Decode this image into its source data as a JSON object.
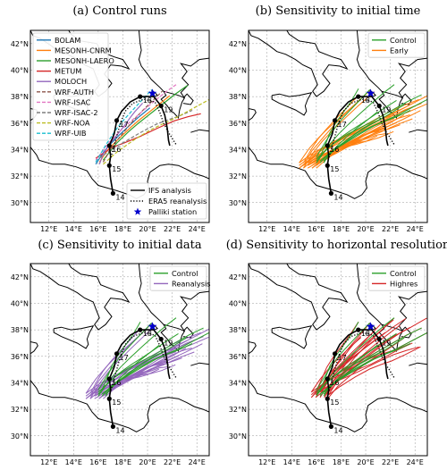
{
  "figure": {
    "axes": {
      "x_ticks": [
        "12°E",
        "14°E",
        "16°E",
        "18°E",
        "20°E",
        "22°E",
        "24°E"
      ],
      "y_ticks": [
        "42°N",
        "40°N",
        "38°N",
        "36°N",
        "34°N",
        "32°N",
        "30°N"
      ]
    },
    "panels": [
      {
        "title": "(a) Control runs",
        "legend": [
          {
            "label": "BOLAM",
            "color": "#1f77b4",
            "style": "solid"
          },
          {
            "label": "MESONH-CNRM",
            "color": "#ff7f0e",
            "style": "solid"
          },
          {
            "label": "MESONH-LAERO",
            "color": "#2ca02c",
            "style": "solid"
          },
          {
            "label": "METUM",
            "color": "#d62728",
            "style": "solid"
          },
          {
            "label": "MOLOCH",
            "color": "#9467bd",
            "style": "solid"
          },
          {
            "label": "WRF-AUTH",
            "color": "#8c564b",
            "style": "dashed"
          },
          {
            "label": "WRF-ISAC",
            "color": "#e377c2",
            "style": "dashed"
          },
          {
            "label": "WRF-ISAC-2",
            "color": "#7f7f7f",
            "style": "dashed"
          },
          {
            "label": "WRF-NOA",
            "color": "#bcbd22",
            "style": "dashed"
          },
          {
            "label": "WRF-UIB",
            "color": "#17becf",
            "style": "dashed"
          }
        ],
        "legend2": [
          {
            "label": "IFS analysis",
            "color": "#000000",
            "style": "solid"
          },
          {
            "label": "ERA5 reanalysis",
            "color": "#000000",
            "style": "dotted"
          },
          {
            "label": "Palliki station",
            "color": "#0000cc",
            "style": "star"
          }
        ]
      },
      {
        "title": "(b) Sensitivity to initial time",
        "legend": [
          {
            "label": "Control",
            "color": "#2ca02c",
            "style": "solid"
          },
          {
            "label": "Early",
            "color": "#ff7f0e",
            "style": "solid"
          }
        ],
        "ens_color": "#ff7f0e"
      },
      {
        "title": "(c) Sensitivity to initial data",
        "legend": [
          {
            "label": "Control",
            "color": "#2ca02c",
            "style": "solid"
          },
          {
            "label": "Reanalysis",
            "color": "#9467bd",
            "style": "solid"
          }
        ],
        "ens_color": "#9467bd"
      },
      {
        "title": "(d) Sensitivity to horizontal resolution",
        "legend": [
          {
            "label": "Control",
            "color": "#2ca02c",
            "style": "solid"
          },
          {
            "label": "Highres",
            "color": "#d62728",
            "style": "solid"
          }
        ],
        "ens_color": "#d62728"
      }
    ],
    "ifs_track": [
      [
        17.2,
        30.7
      ],
      [
        17.0,
        31.8
      ],
      [
        16.9,
        32.8
      ],
      [
        17.0,
        33.5
      ],
      [
        16.9,
        34.3
      ],
      [
        17.3,
        35.2
      ],
      [
        17.5,
        36.2
      ],
      [
        17.9,
        36.9
      ],
      [
        18.6,
        37.6
      ],
      [
        19.4,
        38.0
      ],
      [
        20.5,
        38.0
      ],
      [
        21.1,
        37.3
      ],
      [
        21.4,
        36.6
      ],
      [
        21.6,
        35.6
      ],
      [
        21.7,
        34.7
      ],
      [
        21.8,
        34.3
      ]
    ],
    "era5_track": [
      [
        16.9,
        33.0
      ],
      [
        17.2,
        34.0
      ],
      [
        17.5,
        35.0
      ],
      [
        17.8,
        36.0
      ],
      [
        18.2,
        36.9
      ],
      [
        18.8,
        37.5
      ],
      [
        19.7,
        37.8
      ],
      [
        20.6,
        37.6
      ],
      [
        21.0,
        36.8
      ],
      [
        21.3,
        36.0
      ],
      [
        21.7,
        35.3
      ],
      [
        22.3,
        34.4
      ]
    ],
    "day_labels": [
      {
        "label": "14",
        "lon": 17.2,
        "lat": 30.7
      },
      {
        "label": "15",
        "lon": 16.9,
        "lat": 32.8
      },
      {
        "label": "16",
        "lon": 16.9,
        "lat": 34.3
      },
      {
        "label": "17",
        "lon": 17.5,
        "lat": 36.2
      },
      {
        "label": "18",
        "lon": 19.4,
        "lat": 38.0
      },
      {
        "label": "19",
        "lon": 21.1,
        "lat": 37.3
      }
    ],
    "station": {
      "lon": 20.4,
      "lat": 38.25
    }
  }
}
